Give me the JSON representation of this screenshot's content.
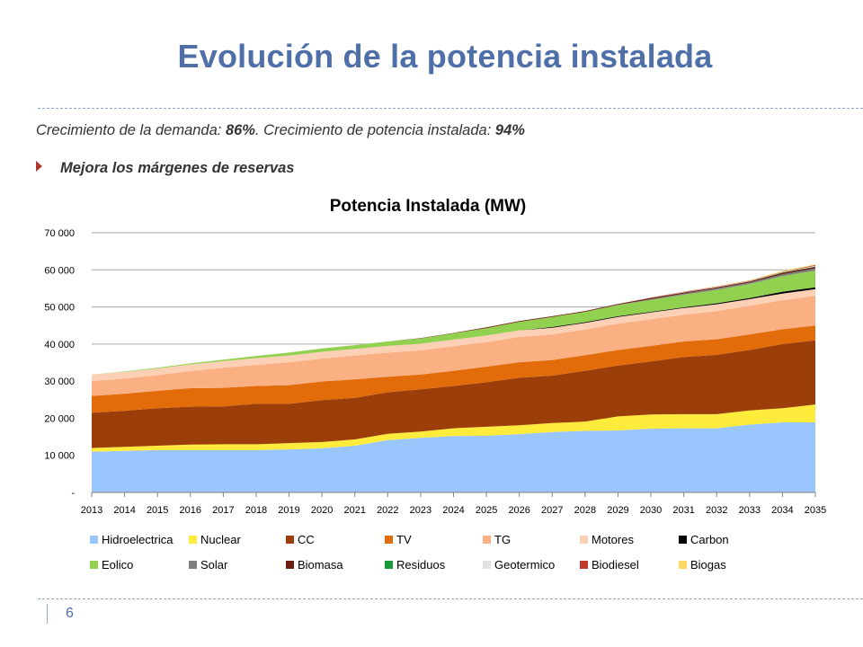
{
  "slide": {
    "title": "Evolución de la potencia instalada",
    "subtitle_prefix": "Crecimiento de la demanda: ",
    "subtitle_demand": "86%",
    "subtitle_mid": ". Crecimiento de potencia instalada: ",
    "subtitle_capacity": "94%",
    "bullet": "Mejora los márgenes de reservas",
    "page_number": "6"
  },
  "chart_data": {
    "type": "area",
    "stacked": true,
    "title": "Potencia Instalada (MW)",
    "xlabel": "",
    "ylabel": "",
    "ylim": [
      0,
      70000
    ],
    "yticks": [
      0,
      10000,
      20000,
      30000,
      40000,
      50000,
      60000,
      70000
    ],
    "ytick_labels": [
      "-",
      "10 000",
      "20 000",
      "30 000",
      "40 000",
      "50 000",
      "60 000",
      "70 000"
    ],
    "grid": true,
    "legend_position": "bottom",
    "x": [
      "2013",
      "2014",
      "2015",
      "2016",
      "2017",
      "2018",
      "2019",
      "2020",
      "2021",
      "2022",
      "2023",
      "2024",
      "2025",
      "2026",
      "2027",
      "2028",
      "2029",
      "2030",
      "2031",
      "2032",
      "2033",
      "2034",
      "2035"
    ],
    "series": [
      {
        "name": "Hidroelectrica",
        "color": "#99c6ff",
        "values": [
          11000,
          11200,
          11400,
          11400,
          11400,
          11400,
          11600,
          11900,
          12600,
          14100,
          14700,
          15200,
          15300,
          15700,
          16300,
          16600,
          16700,
          17200,
          17300,
          17300,
          18300,
          18900,
          18900
        ]
      },
      {
        "name": "Nuclear",
        "color": "#ffeb3b",
        "values": [
          1000,
          1100,
          1200,
          1500,
          1600,
          1600,
          1700,
          1700,
          1700,
          1700,
          1700,
          2100,
          2400,
          2400,
          2400,
          2500,
          3800,
          3800,
          3800,
          3800,
          3800,
          3800,
          4800
        ]
      },
      {
        "name": "CC",
        "color": "#9c3e0a",
        "values": [
          9500,
          9700,
          10100,
          10200,
          10200,
          10900,
          10600,
          11300,
          11200,
          11200,
          11400,
          11400,
          12000,
          12800,
          12800,
          13700,
          13700,
          14300,
          15400,
          16000,
          16300,
          17300,
          17300
        ]
      },
      {
        "name": "TV",
        "color": "#e36c0a",
        "values": [
          4500,
          4600,
          4700,
          5000,
          5000,
          4800,
          5000,
          5000,
          5000,
          4200,
          4000,
          4100,
          4200,
          4200,
          4200,
          4200,
          4200,
          4200,
          4200,
          4200,
          4200,
          4000,
          4000
        ]
      },
      {
        "name": "TG",
        "color": "#fbb084",
        "values": [
          4000,
          4100,
          4200,
          4600,
          5400,
          5700,
          6200,
          6200,
          6400,
          6500,
          6500,
          6600,
          6600,
          6800,
          6900,
          6900,
          7100,
          7200,
          7200,
          7600,
          7700,
          7800,
          8000
        ]
      },
      {
        "name": "Motores",
        "color": "#fbd0b4",
        "values": [
          1800,
          1800,
          1800,
          1800,
          1800,
          1800,
          1800,
          1800,
          1800,
          1800,
          1800,
          1800,
          1800,
          1800,
          1800,
          1800,
          1800,
          1800,
          1800,
          1800,
          1800,
          1800,
          1800
        ]
      },
      {
        "name": "Carbon",
        "color": "#000000",
        "values": [
          0,
          0,
          0,
          0,
          0,
          0,
          0,
          0,
          0,
          0,
          0,
          0,
          0,
          0,
          200,
          200,
          200,
          200,
          200,
          300,
          300,
          500,
          500
        ]
      },
      {
        "name": "Eolico",
        "color": "#92d050",
        "values": [
          0,
          100,
          200,
          300,
          400,
          600,
          800,
          900,
          1000,
          1200,
          1400,
          1700,
          2000,
          2300,
          2700,
          2800,
          3000,
          3200,
          3400,
          3600,
          3800,
          4200,
          4500
        ]
      },
      {
        "name": "Solar",
        "color": "#7f7f7f",
        "values": [
          0,
          0,
          0,
          0,
          0,
          0,
          0,
          0,
          0,
          0,
          0,
          0,
          0,
          0,
          0,
          0,
          100,
          200,
          300,
          400,
          400,
          500,
          600
        ]
      },
      {
        "name": "Biomasa",
        "color": "#6b1f0e",
        "values": [
          0,
          0,
          0,
          0,
          0,
          0,
          0,
          0,
          0,
          0,
          100,
          100,
          200,
          200,
          200,
          200,
          200,
          300,
          300,
          300,
          300,
          400,
          400
        ]
      },
      {
        "name": "Residuos",
        "color": "#1a9a3a",
        "values": [
          0,
          0,
          0,
          0,
          0,
          0,
          0,
          0,
          0,
          0,
          0,
          0,
          0,
          0,
          0,
          0,
          0,
          0,
          0,
          0,
          0,
          100,
          100
        ]
      },
      {
        "name": "Geotermico",
        "color": "#e2e2e2",
        "values": [
          0,
          0,
          0,
          0,
          0,
          0,
          0,
          0,
          0,
          0,
          0,
          0,
          0,
          0,
          0,
          0,
          0,
          0,
          100,
          100,
          100,
          100,
          200
        ]
      },
      {
        "name": "Biodiesel",
        "color": "#c0392b",
        "values": [
          0,
          0,
          0,
          0,
          0,
          0,
          0,
          0,
          0,
          0,
          0,
          0,
          0,
          0,
          0,
          0,
          0,
          100,
          100,
          100,
          100,
          100,
          200
        ]
      },
      {
        "name": "Biogas",
        "color": "#ffd966",
        "values": [
          0,
          0,
          0,
          0,
          0,
          0,
          0,
          0,
          0,
          0,
          0,
          0,
          0,
          0,
          0,
          0,
          0,
          0,
          0,
          100,
          100,
          200,
          200
        ]
      }
    ]
  }
}
